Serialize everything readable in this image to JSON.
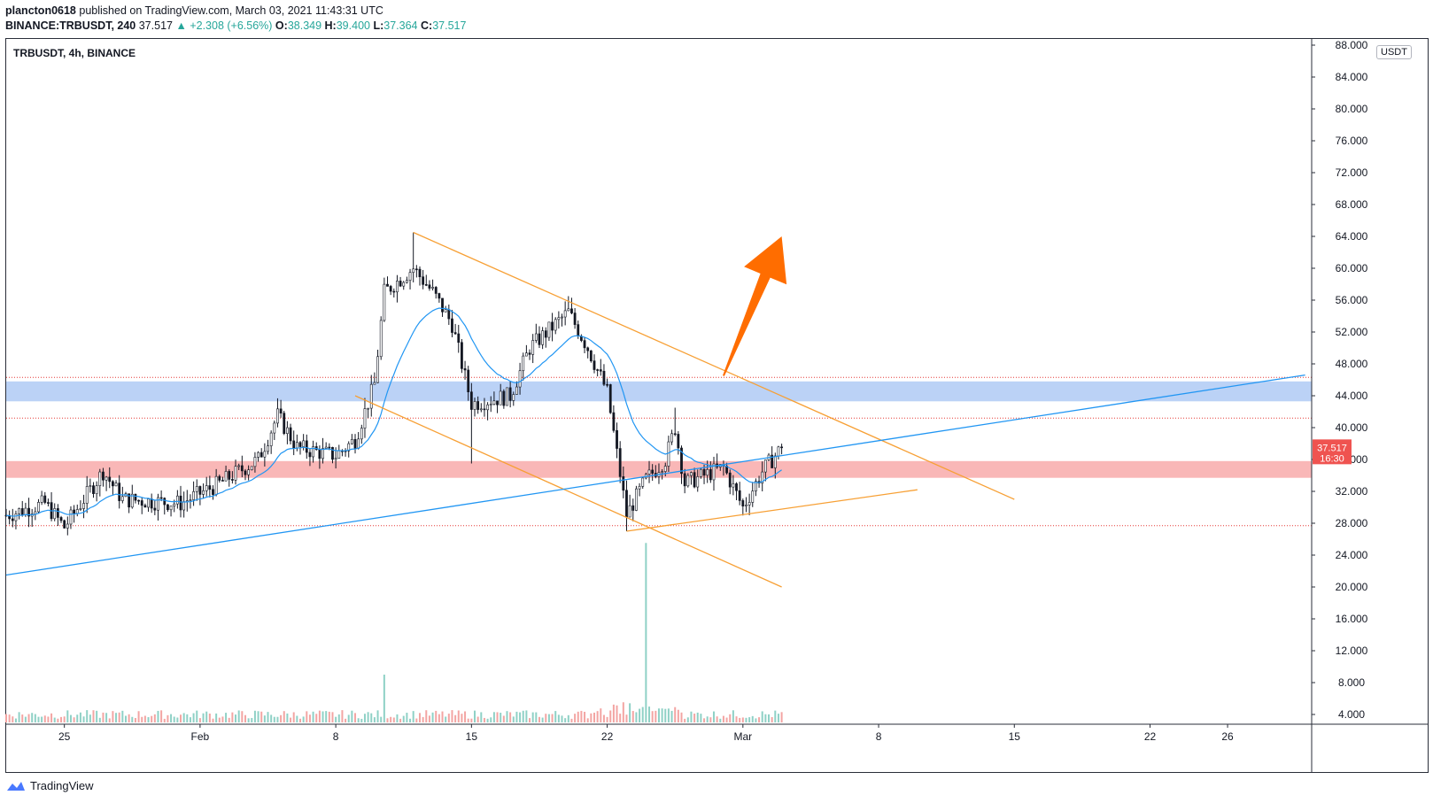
{
  "header": {
    "author": "plancton0618",
    "published_text": "published on TradingView.com, March 03, 2021 11:43:31 UTC",
    "symbol": "BINANCE:TRBUSDT, 240",
    "last": "37.517",
    "change": "+2.308 (+6.56%)",
    "open_label": "O:",
    "open": "38.349",
    "high_label": "H:",
    "high": "39.400",
    "low_label": "L:",
    "low": "37.364",
    "close_label": "C:",
    "close": "37.517"
  },
  "legend": {
    "title": "TRBUSDT, 4h, BINANCE"
  },
  "price_axis": {
    "unit": "USDT",
    "ticks": [
      "88.000",
      "84.000",
      "80.000",
      "76.000",
      "72.000",
      "68.000",
      "64.000",
      "60.000",
      "56.000",
      "52.000",
      "48.000",
      "44.000",
      "40.000",
      "36.000",
      "32.000",
      "28.000",
      "24.000",
      "20.000",
      "16.000",
      "12.000",
      "8.000",
      "4.000"
    ],
    "last_price_label": "37.517",
    "countdown_label": "16:30"
  },
  "time_axis": {
    "ticks": [
      "25",
      "Feb",
      "8",
      "15",
      "22",
      "Mar",
      "8",
      "15",
      "22",
      "26"
    ]
  },
  "footer": {
    "brand": "TradingView"
  },
  "colors": {
    "up": "#26a69a",
    "down": "#ef5350",
    "ema": "#2196f3",
    "trendline": "#f7a035",
    "arrow": "#ff6d00",
    "resistance_zone": "#bbd2f6",
    "support_zone": "#f9b7b7"
  },
  "chart_data": {
    "type": "candlestick",
    "title": "TRBUSDT, 4h, BINANCE",
    "ylim": [
      0,
      88
    ],
    "y_scale": "linear",
    "start_date": "2021-01-22",
    "candle_interval": "4h",
    "keyframes": [
      {
        "date": "2021-01-22",
        "close": 29.0
      },
      {
        "date": "2021-01-24",
        "close": 30.5
      },
      {
        "date": "2021-01-25",
        "close": 27.5
      },
      {
        "date": "2021-01-27",
        "close": 34.5
      },
      {
        "date": "2021-01-28",
        "close": 31.0
      },
      {
        "date": "2021-01-31",
        "close": 30.5
      },
      {
        "date": "2021-02-02",
        "close": 33.0
      },
      {
        "date": "2021-02-04",
        "close": 36.0
      },
      {
        "date": "2021-02-05",
        "close": 41.5
      },
      {
        "date": "2021-02-06",
        "close": 37.5
      },
      {
        "date": "2021-02-08",
        "close": 36.5
      },
      {
        "date": "2021-02-09",
        "close": 38.5
      },
      {
        "date": "2021-02-10",
        "close": 45.5
      },
      {
        "date": "2021-02-10T12:00",
        "close": 57.0
      },
      {
        "date": "2021-02-12",
        "close": 60.0
      },
      {
        "date": "2021-02-13",
        "close": 57.0
      },
      {
        "date": "2021-02-14",
        "close": 53.0
      },
      {
        "date": "2021-02-15",
        "close": 43.0
      },
      {
        "date": "2021-02-17",
        "close": 44.0
      },
      {
        "date": "2021-02-18",
        "close": 50.0
      },
      {
        "date": "2021-02-20",
        "close": 54.5
      },
      {
        "date": "2021-02-21",
        "close": 50.0
      },
      {
        "date": "2021-02-22",
        "close": 44.5
      },
      {
        "date": "2021-02-23",
        "close": 29.0
      },
      {
        "date": "2021-02-24",
        "close": 33.5
      },
      {
        "date": "2021-02-25",
        "close": 36.0
      },
      {
        "date": "2021-02-25T12:00",
        "close": 40.0
      },
      {
        "date": "2021-02-26",
        "close": 33.0
      },
      {
        "date": "2021-02-28",
        "close": 35.0
      },
      {
        "date": "2021-03-01",
        "close": 30.0
      },
      {
        "date": "2021-03-02",
        "close": 34.5
      },
      {
        "date": "2021-03-03",
        "close": 37.517
      }
    ],
    "volume_keyframes": [
      {
        "date": "2021-02-10T12:00",
        "volume": "high"
      },
      {
        "date": "2021-02-24",
        "volume": "very high"
      }
    ],
    "drawings": {
      "horizontal_lines": [
        46.3,
        41.2,
        27.7
      ],
      "zones": [
        {
          "name": "resistance",
          "from": 43.3,
          "to": 45.8
        },
        {
          "name": "support",
          "from": 33.7,
          "to": 35.8
        }
      ],
      "trendlines": [
        {
          "color": "trendline",
          "from": {
            "date": "2021-02-12",
            "price": 64.5
          },
          "to": {
            "date": "2021-03-15",
            "price": 31.0
          }
        },
        {
          "color": "trendline",
          "from": {
            "date": "2021-02-09",
            "price": 44.0
          },
          "to": {
            "date": "2021-03-03",
            "price": 20.0
          }
        },
        {
          "color": "trendline",
          "from": {
            "date": "2021-02-23",
            "price": 27.0
          },
          "to": {
            "date": "2021-03-10",
            "price": 32.2
          }
        },
        {
          "color": "ema",
          "from": {
            "date": "2021-01-22",
            "price": 21.5
          },
          "to": {
            "date": "2021-03-30",
            "price": 46.6
          }
        }
      ],
      "arrow": {
        "from": {
          "date": "2021-02-28",
          "price": 46.5
        },
        "to": {
          "date": "2021-03-03",
          "price": 64.0
        }
      }
    }
  }
}
